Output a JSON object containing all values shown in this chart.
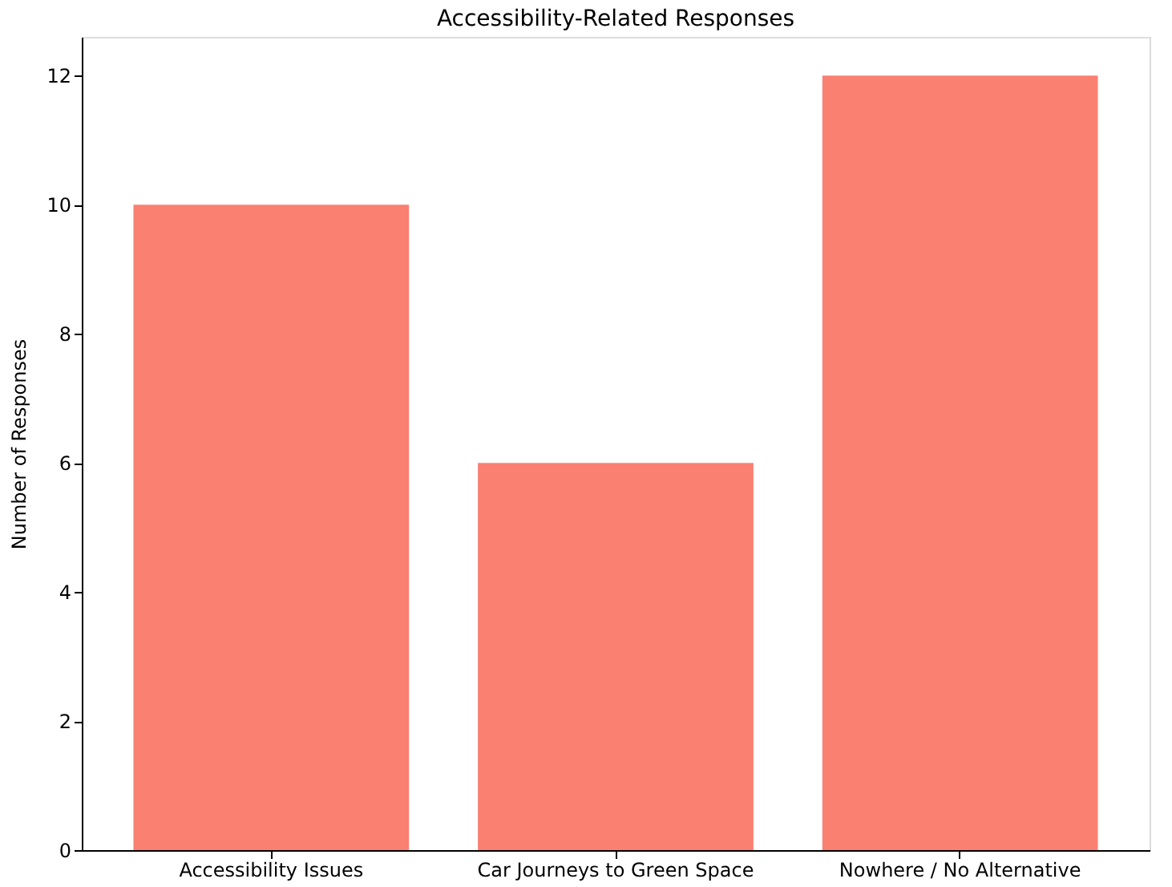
{
  "chart_data": {
    "type": "bar",
    "title": "Accessibility-Related Responses",
    "ylabel": "Number of Responses",
    "categories": [
      "Accessibility Issues",
      "Car Journeys to Green Space",
      "Nowhere / No Alternative"
    ],
    "values": [
      10,
      6,
      12
    ],
    "color": "#fa8072",
    "ylim": [
      0,
      12.6
    ],
    "yticks": [
      0,
      2,
      4,
      6,
      8,
      10,
      12
    ],
    "grid": false
  }
}
